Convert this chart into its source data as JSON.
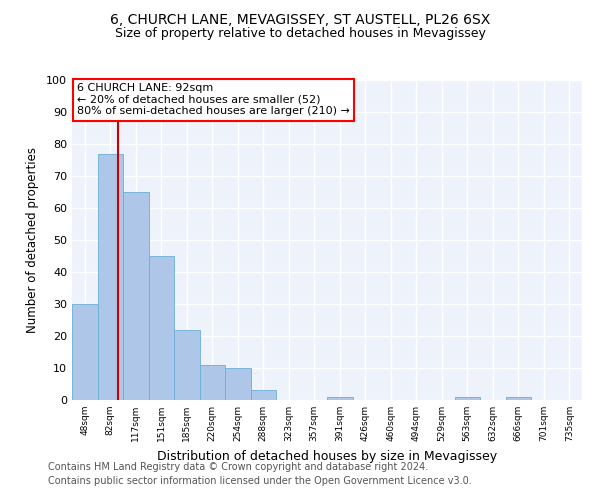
{
  "title1": "6, CHURCH LANE, MEVAGISSEY, ST AUSTELL, PL26 6SX",
  "title2": "Size of property relative to detached houses in Mevagissey",
  "xlabel": "Distribution of detached houses by size in Mevagissey",
  "ylabel": "Number of detached properties",
  "categories": [
    "48sqm",
    "82sqm",
    "117sqm",
    "151sqm",
    "185sqm",
    "220sqm",
    "254sqm",
    "288sqm",
    "323sqm",
    "357sqm",
    "391sqm",
    "426sqm",
    "460sqm",
    "494sqm",
    "529sqm",
    "563sqm",
    "632sqm",
    "666sqm",
    "701sqm",
    "735sqm"
  ],
  "values": [
    30,
    77,
    65,
    45,
    22,
    11,
    10,
    3,
    0,
    0,
    1,
    0,
    0,
    0,
    0,
    1,
    0,
    1,
    0,
    0
  ],
  "bar_color": "#aec6e8",
  "bar_edge_color": "#6aaed6",
  "annotation_text": "6 CHURCH LANE: 92sqm\n← 20% of detached houses are smaller (52)\n80% of semi-detached houses are larger (210) →",
  "annotation_box_color": "white",
  "annotation_box_edge_color": "red",
  "red_line_color": "#cc0000",
  "footer1": "Contains HM Land Registry data © Crown copyright and database right 2024.",
  "footer2": "Contains public sector information licensed under the Open Government Licence v3.0.",
  "ylim": [
    0,
    100
  ],
  "background_color": "#eef2fb",
  "grid_color": "white",
  "title1_fontsize": 10,
  "title2_fontsize": 9
}
